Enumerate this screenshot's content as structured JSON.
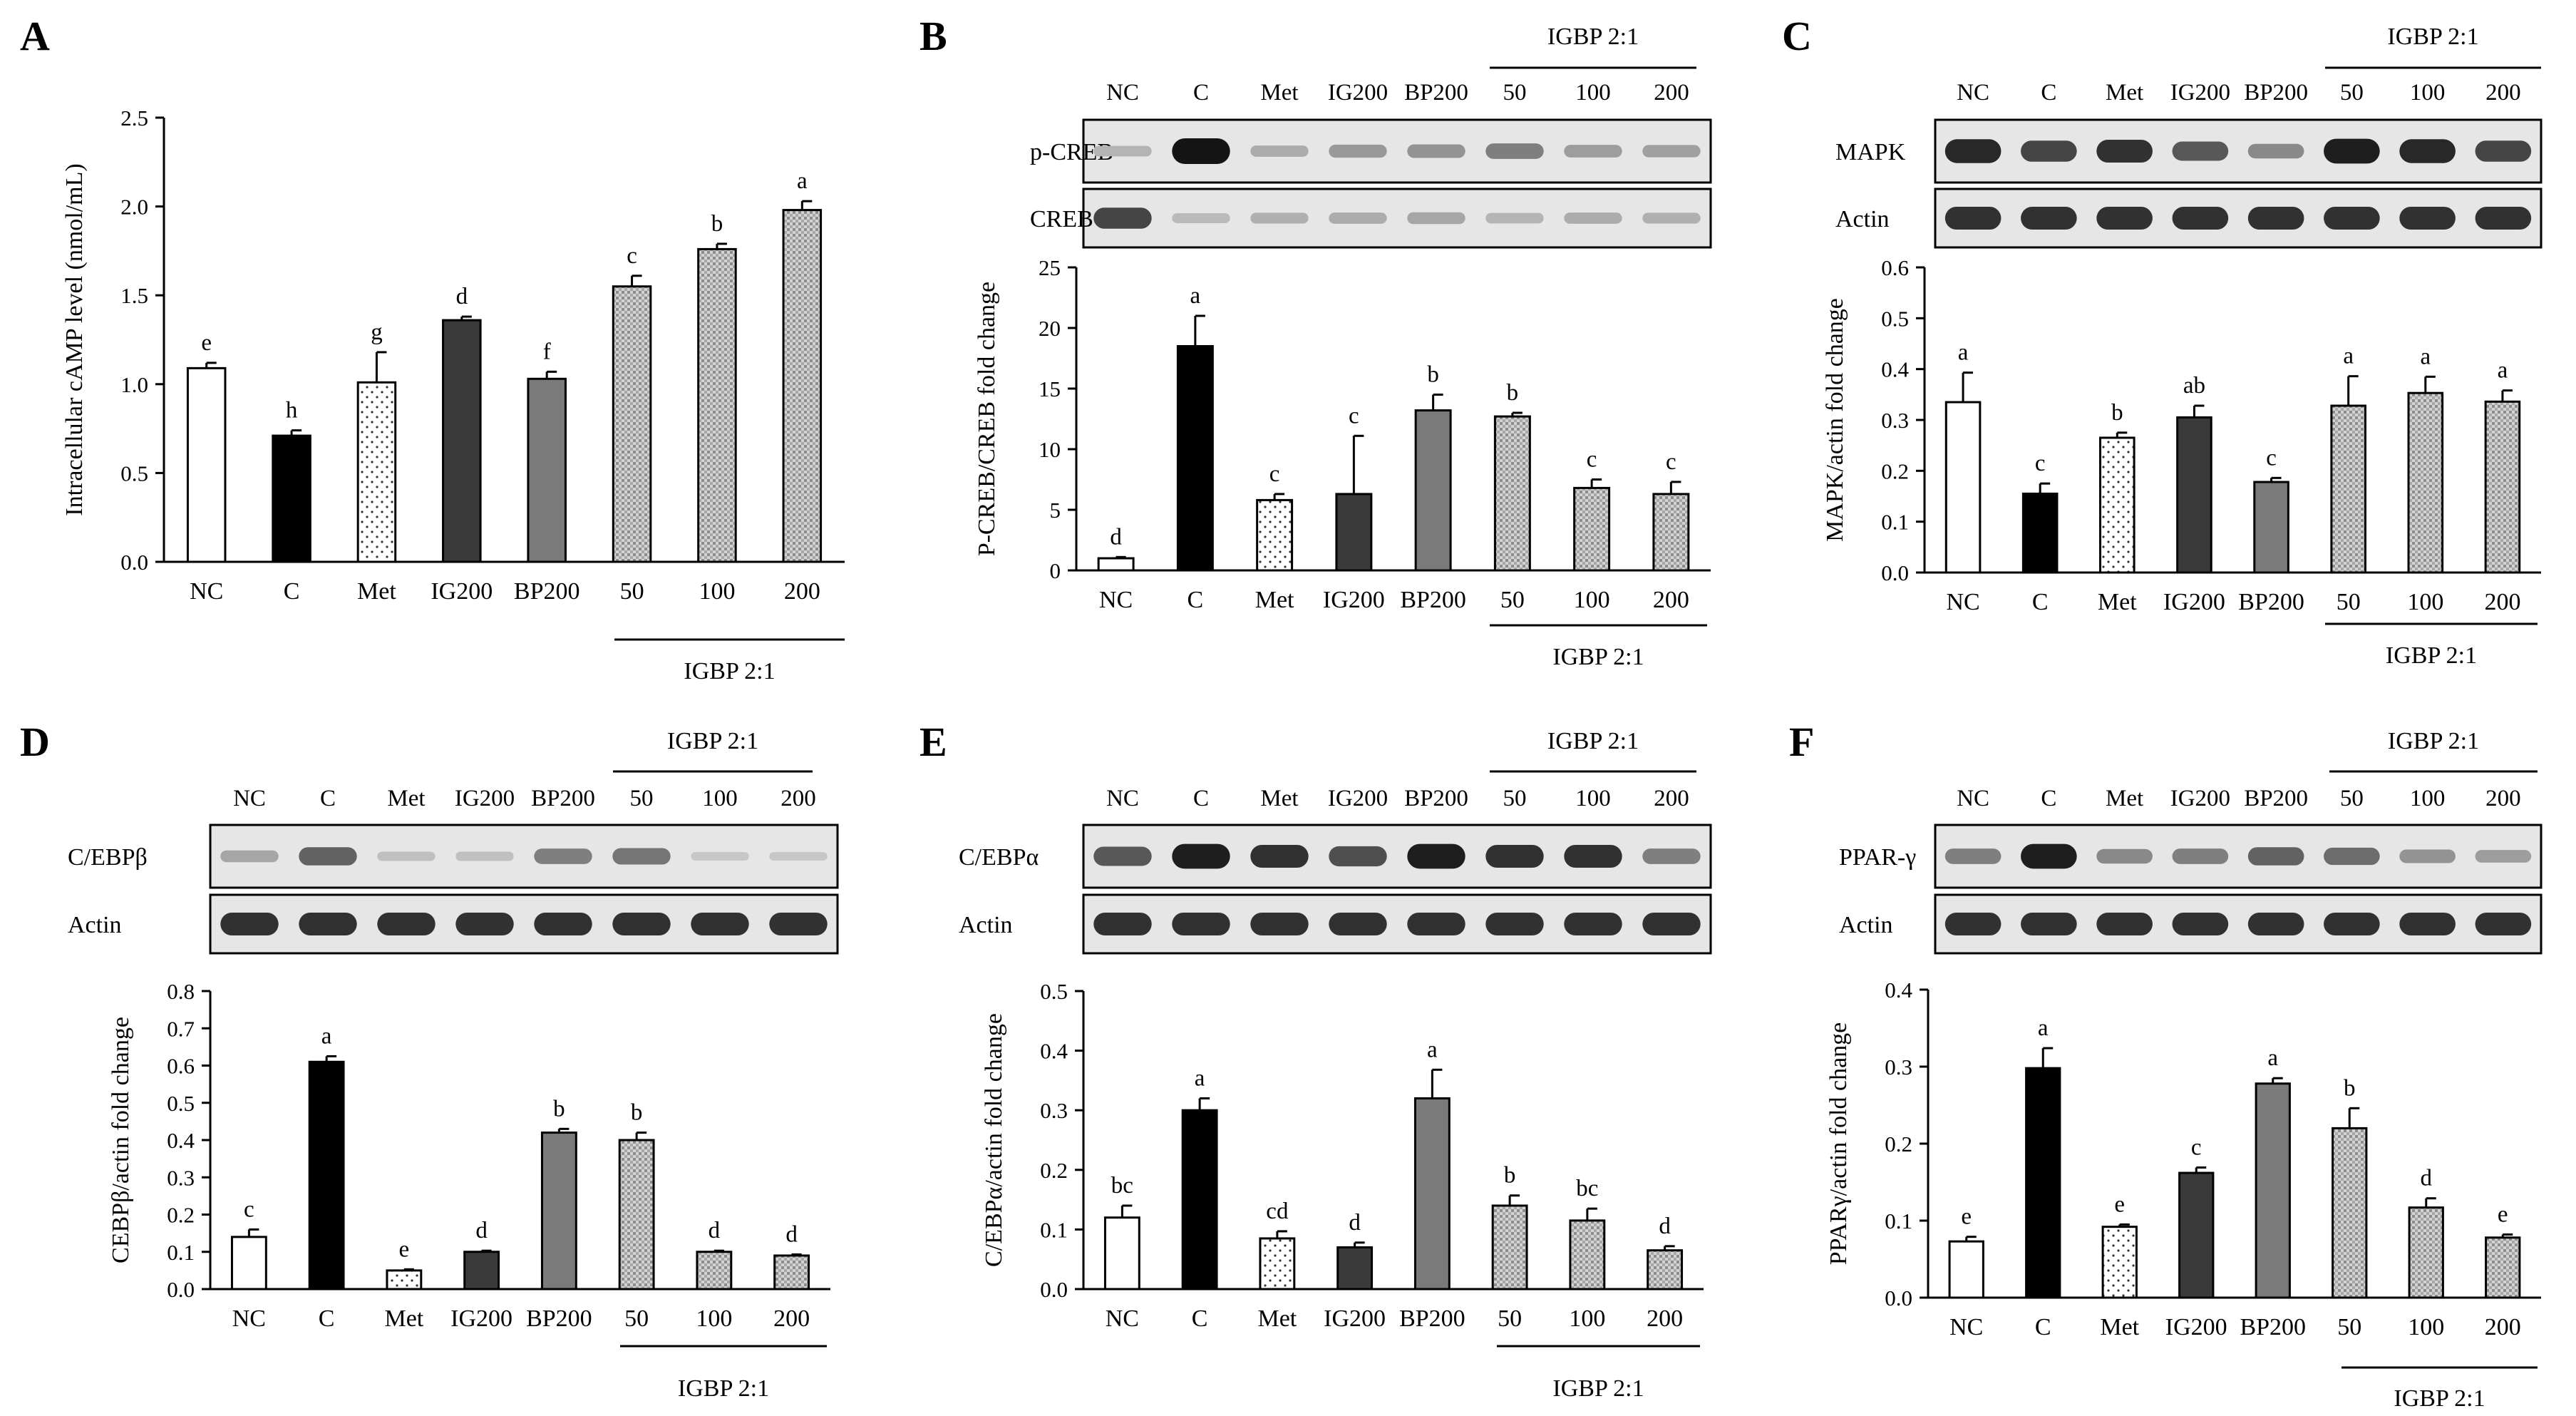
{
  "group": {
    "label": "IGBP 2:1"
  },
  "categories": [
    "NC",
    "C",
    "Met",
    "IG200",
    "BP200",
    "50",
    "100",
    "200"
  ],
  "blot_lanes": [
    "NC",
    "C",
    "Met",
    "IG200",
    "BP200",
    "50",
    "100",
    "200"
  ],
  "colors": {
    "NC": "#ffffff",
    "C": "#000000",
    "Met": "#ffffff",
    "IG200": "#3a3a3a",
    "BP200": "#7a7a7a",
    "IGBP": "#bdbdbd",
    "axis": "#000000"
  },
  "panels": [
    {
      "letter": "A",
      "blots": []
    },
    {
      "letter": "B",
      "blots": [
        {
          "label": "p-CREB",
          "intensity": [
            0.18,
            1.0,
            0.22,
            0.32,
            0.35,
            0.45,
            0.3,
            0.28
          ]
        },
        {
          "label": "CREB",
          "intensity": [
            0.75,
            0.15,
            0.2,
            0.22,
            0.25,
            0.18,
            0.22,
            0.2
          ]
        }
      ]
    },
    {
      "letter": "C",
      "blots": [
        {
          "label": "MAPK",
          "intensity": [
            0.9,
            0.75,
            0.85,
            0.65,
            0.4,
            0.95,
            0.9,
            0.75
          ]
        },
        {
          "label": "Actin",
          "intensity": [
            0.85,
            0.85,
            0.85,
            0.85,
            0.85,
            0.85,
            0.85,
            0.85
          ]
        }
      ]
    },
    {
      "letter": "D",
      "blots": [
        {
          "label": "C/EBPβ",
          "intensity": [
            0.25,
            0.6,
            0.12,
            0.12,
            0.45,
            0.5,
            0.08,
            0.08
          ]
        },
        {
          "label": "Actin",
          "intensity": [
            0.85,
            0.85,
            0.85,
            0.85,
            0.85,
            0.85,
            0.85,
            0.85
          ]
        }
      ]
    },
    {
      "letter": "E",
      "blots": [
        {
          "label": "C/EBPα",
          "intensity": [
            0.65,
            0.95,
            0.85,
            0.7,
            0.95,
            0.85,
            0.85,
            0.45
          ]
        },
        {
          "label": "Actin",
          "intensity": [
            0.85,
            0.85,
            0.85,
            0.85,
            0.85,
            0.85,
            0.85,
            0.85
          ]
        }
      ]
    },
    {
      "letter": "F",
      "blots": [
        {
          "label": "PPAR-γ",
          "intensity": [
            0.45,
            0.95,
            0.4,
            0.45,
            0.6,
            0.55,
            0.35,
            0.3
          ]
        },
        {
          "label": "Actin",
          "intensity": [
            0.85,
            0.85,
            0.85,
            0.85,
            0.85,
            0.85,
            0.85,
            0.85
          ]
        }
      ]
    }
  ],
  "chart_data": [
    {
      "panel": "A",
      "type": "bar",
      "title": "",
      "xlabel": "",
      "ylabel": "Intracellular cAMP level (nmol/mL)",
      "categories": [
        "NC",
        "C",
        "Met",
        "IG200",
        "BP200",
        "50",
        "100",
        "200"
      ],
      "values": [
        1.09,
        0.71,
        1.01,
        1.36,
        1.03,
        1.55,
        1.76,
        1.98
      ],
      "errors": [
        0.03,
        0.03,
        0.17,
        0.02,
        0.04,
        0.06,
        0.03,
        0.05
      ],
      "letters": [
        "e",
        "h",
        "g",
        "d",
        "f",
        "c",
        "b",
        "a"
      ],
      "ylim": [
        0,
        2.5
      ],
      "yticks": [
        "0.0",
        "0.5",
        "1.0",
        "1.5",
        "2.0",
        "2.5"
      ],
      "group_label": "IGBP 2:1"
    },
    {
      "panel": "B",
      "type": "bar",
      "title": "",
      "xlabel": "",
      "ylabel": "P-CREB/CREB fold change",
      "categories": [
        "NC",
        "C",
        "Met",
        "IG200",
        "BP200",
        "50",
        "100",
        "200"
      ],
      "values": [
        1.0,
        18.5,
        5.8,
        6.3,
        13.2,
        12.7,
        6.8,
        6.3
      ],
      "errors": [
        0.1,
        2.5,
        0.5,
        4.8,
        1.3,
        0.3,
        0.7,
        1.0
      ],
      "letters": [
        "d",
        "a",
        "c",
        "c",
        "b",
        "b",
        "c",
        "c"
      ],
      "ylim": [
        0,
        25
      ],
      "yticks": [
        "0",
        "5",
        "10",
        "15",
        "20",
        "25"
      ],
      "group_label": "IGBP 2:1"
    },
    {
      "panel": "C",
      "type": "bar",
      "title": "",
      "xlabel": "",
      "ylabel": "MAPK/actin fold change",
      "categories": [
        "NC",
        "C",
        "Met",
        "IG200",
        "BP200",
        "50",
        "100",
        "200"
      ],
      "values": [
        0.335,
        0.155,
        0.265,
        0.305,
        0.178,
        0.328,
        0.353,
        0.336
      ],
      "errors": [
        0.058,
        0.02,
        0.01,
        0.023,
        0.008,
        0.058,
        0.032,
        0.022
      ],
      "letters": [
        "a",
        "c",
        "b",
        "ab",
        "c",
        "a",
        "a",
        "a"
      ],
      "ylim": [
        0,
        0.6
      ],
      "yticks": [
        "0.0",
        "0.1",
        "0.2",
        "0.3",
        "0.4",
        "0.5",
        "0.6"
      ],
      "group_label": "IGBP 2:1"
    },
    {
      "panel": "D",
      "type": "bar",
      "title": "",
      "xlabel": "",
      "ylabel": "CEBPβ/actin fold change",
      "categories": [
        "NC",
        "C",
        "Met",
        "IG200",
        "BP200",
        "50",
        "100",
        "200"
      ],
      "values": [
        0.14,
        0.61,
        0.05,
        0.1,
        0.42,
        0.4,
        0.1,
        0.09
      ],
      "errors": [
        0.02,
        0.015,
        0.003,
        0.003,
        0.01,
        0.02,
        0.003,
        0.003
      ],
      "letters": [
        "c",
        "a",
        "e",
        "d",
        "b",
        "b",
        "d",
        "d"
      ],
      "ylim": [
        0,
        0.8
      ],
      "yticks": [
        "0.0",
        "0.1",
        "0.2",
        "0.3",
        "0.4",
        "0.5",
        "0.6",
        "0.7",
        "0.8"
      ],
      "group_label": "IGBP 2:1"
    },
    {
      "panel": "E",
      "type": "bar",
      "title": "",
      "xlabel": "",
      "ylabel": "C/EBPα/actin fold change",
      "categories": [
        "NC",
        "C",
        "Met",
        "IG200",
        "BP200",
        "50",
        "100",
        "200"
      ],
      "values": [
        0.12,
        0.3,
        0.085,
        0.07,
        0.32,
        0.14,
        0.115,
        0.065
      ],
      "errors": [
        0.02,
        0.02,
        0.012,
        0.008,
        0.048,
        0.017,
        0.02,
        0.007
      ],
      "letters": [
        "bc",
        "a",
        "cd",
        "d",
        "a",
        "b",
        "bc",
        "d"
      ],
      "ylim": [
        0,
        0.5
      ],
      "yticks": [
        "0.0",
        "0.1",
        "0.2",
        "0.3",
        "0.4",
        "0.5"
      ],
      "group_label": "IGBP 2:1"
    },
    {
      "panel": "F",
      "type": "bar",
      "title": "",
      "xlabel": "",
      "ylabel": "PPARγ/actin fold change",
      "categories": [
        "NC",
        "C",
        "Met",
        "IG200",
        "BP200",
        "50",
        "100",
        "200"
      ],
      "values": [
        0.073,
        0.298,
        0.092,
        0.162,
        0.278,
        0.22,
        0.117,
        0.078
      ],
      "errors": [
        0.006,
        0.026,
        0.003,
        0.007,
        0.007,
        0.026,
        0.012,
        0.004
      ],
      "letters": [
        "e",
        "a",
        "e",
        "c",
        "a",
        "b",
        "d",
        "e"
      ],
      "ylim": [
        0,
        0.4
      ],
      "yticks": [
        "0.0",
        "0.1",
        "0.2",
        "0.3",
        "0.4"
      ],
      "group_label": "IGBP 2:1"
    }
  ]
}
